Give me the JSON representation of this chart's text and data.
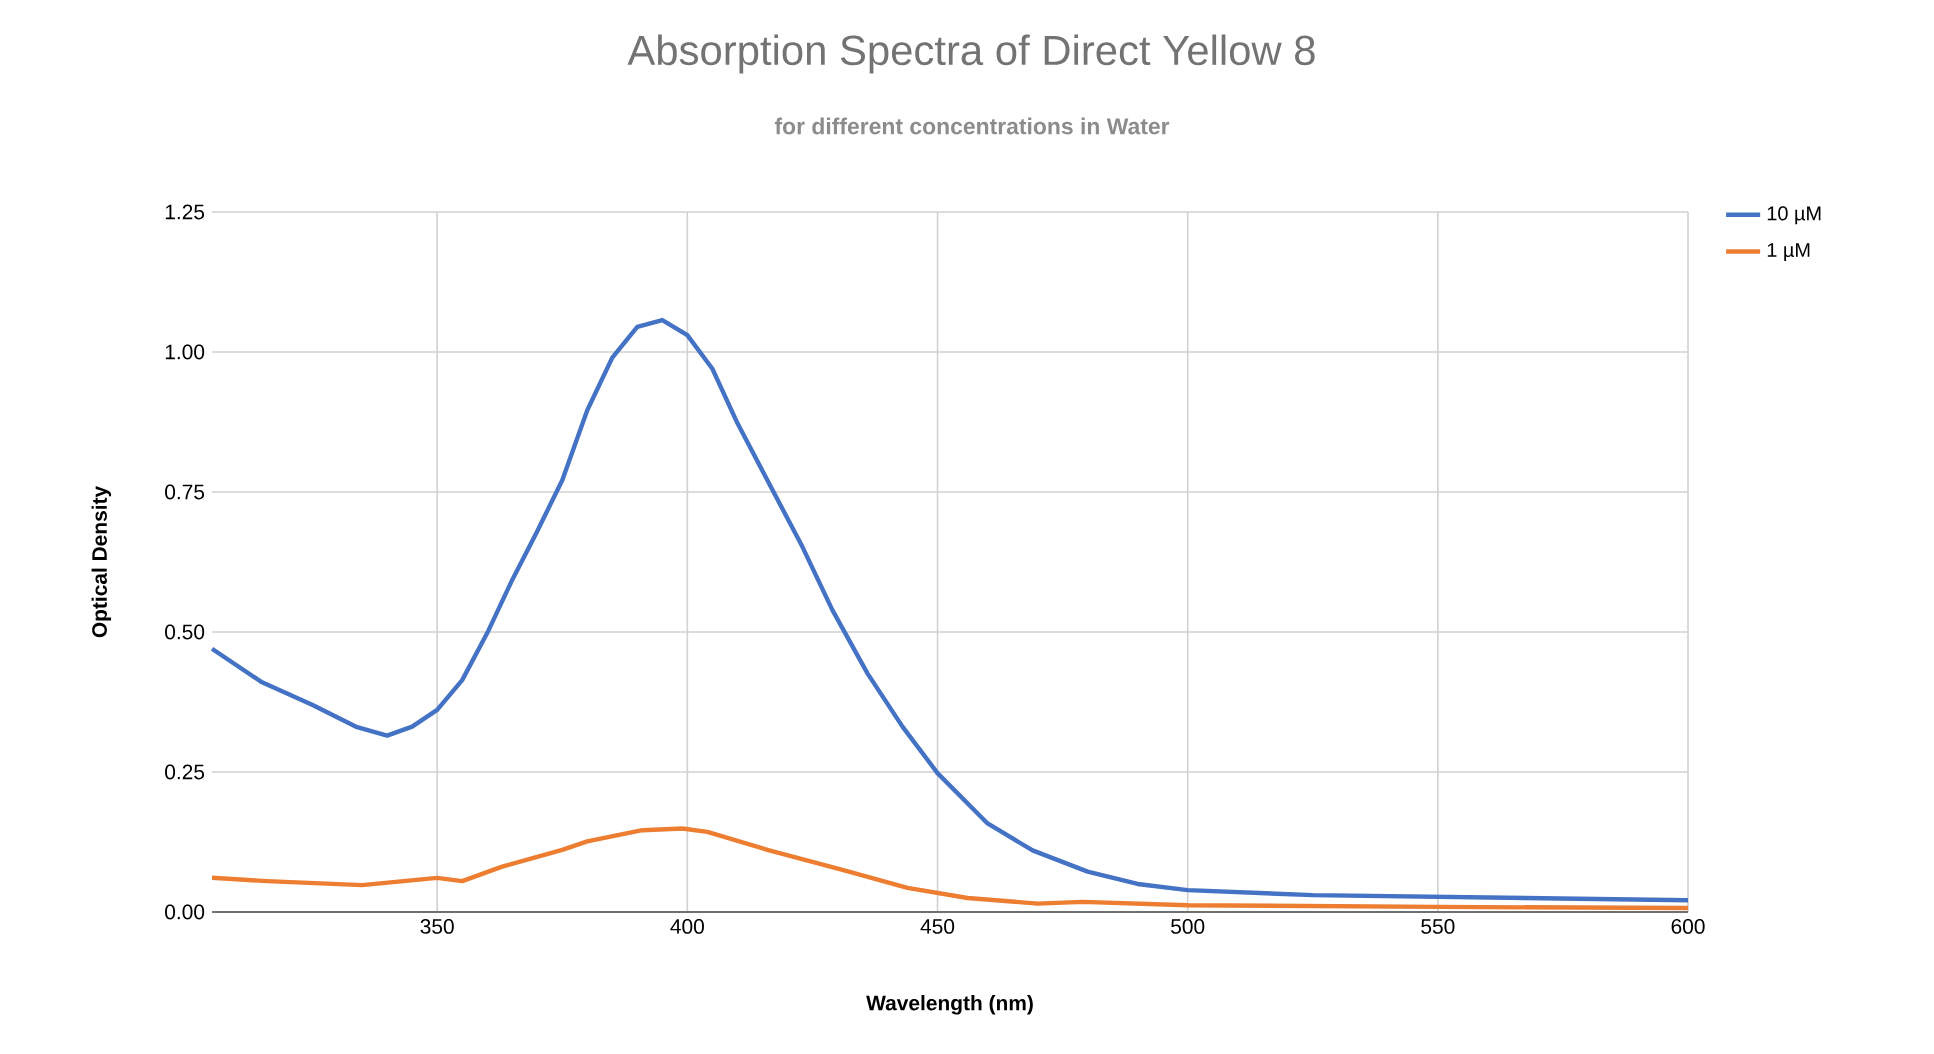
{
  "chart_data": {
    "type": "line",
    "title": "Absorption Spectra of Direct Yellow 8",
    "subtitle": "for different concentrations in Water",
    "xlabel": "Wavelength (nm)",
    "ylabel": "Optical Density",
    "series": [
      {
        "name": "10 µM",
        "color": "#4472c4",
        "x": [
          305,
          315,
          325,
          334,
          340,
          345,
          350,
          355,
          360,
          365,
          370,
          375,
          380,
          385,
          390,
          395,
          400,
          405,
          410,
          416,
          423,
          429,
          436,
          443,
          450,
          460,
          469,
          480,
          490,
          500,
          525,
          550,
          575,
          600
        ],
        "values": [
          0.47,
          0.41,
          0.37,
          0.33,
          0.315,
          0.331,
          0.361,
          0.414,
          0.498,
          0.593,
          0.68,
          0.771,
          0.896,
          0.99,
          1.045,
          1.057,
          1.03,
          0.97,
          0.873,
          0.771,
          0.652,
          0.539,
          0.426,
          0.331,
          0.248,
          0.158,
          0.11,
          0.072,
          0.05,
          0.039,
          0.03,
          0.027,
          0.024,
          0.021
        ]
      },
      {
        "name": "1 µM",
        "color": "#ed7d31",
        "x": [
          305,
          316,
          335,
          350,
          355,
          363,
          375,
          380,
          391,
          399,
          404,
          416,
          431,
          444,
          456,
          470,
          479,
          500,
          550,
          600
        ],
        "values": [
          0.061,
          0.055,
          0.048,
          0.061,
          0.055,
          0.081,
          0.111,
          0.126,
          0.146,
          0.149,
          0.143,
          0.111,
          0.075,
          0.043,
          0.025,
          0.015,
          0.018,
          0.012,
          0.009,
          0.007
        ]
      }
    ],
    "xlim": [
      305,
      600
    ],
    "ylim": [
      0,
      1.25
    ],
    "xticks": [
      350,
      400,
      450,
      500,
      550,
      600
    ],
    "yticks": [
      {
        "value": 0,
        "label": "0.00"
      },
      {
        "value": 0.25,
        "label": "0.25"
      },
      {
        "value": 0.5,
        "label": "0.50"
      },
      {
        "value": 0.75,
        "label": "0.75"
      },
      {
        "value": 1,
        "label": "1.00"
      },
      {
        "value": 1.25,
        "label": "1.25"
      }
    ],
    "grid": true,
    "legend": "top right"
  }
}
